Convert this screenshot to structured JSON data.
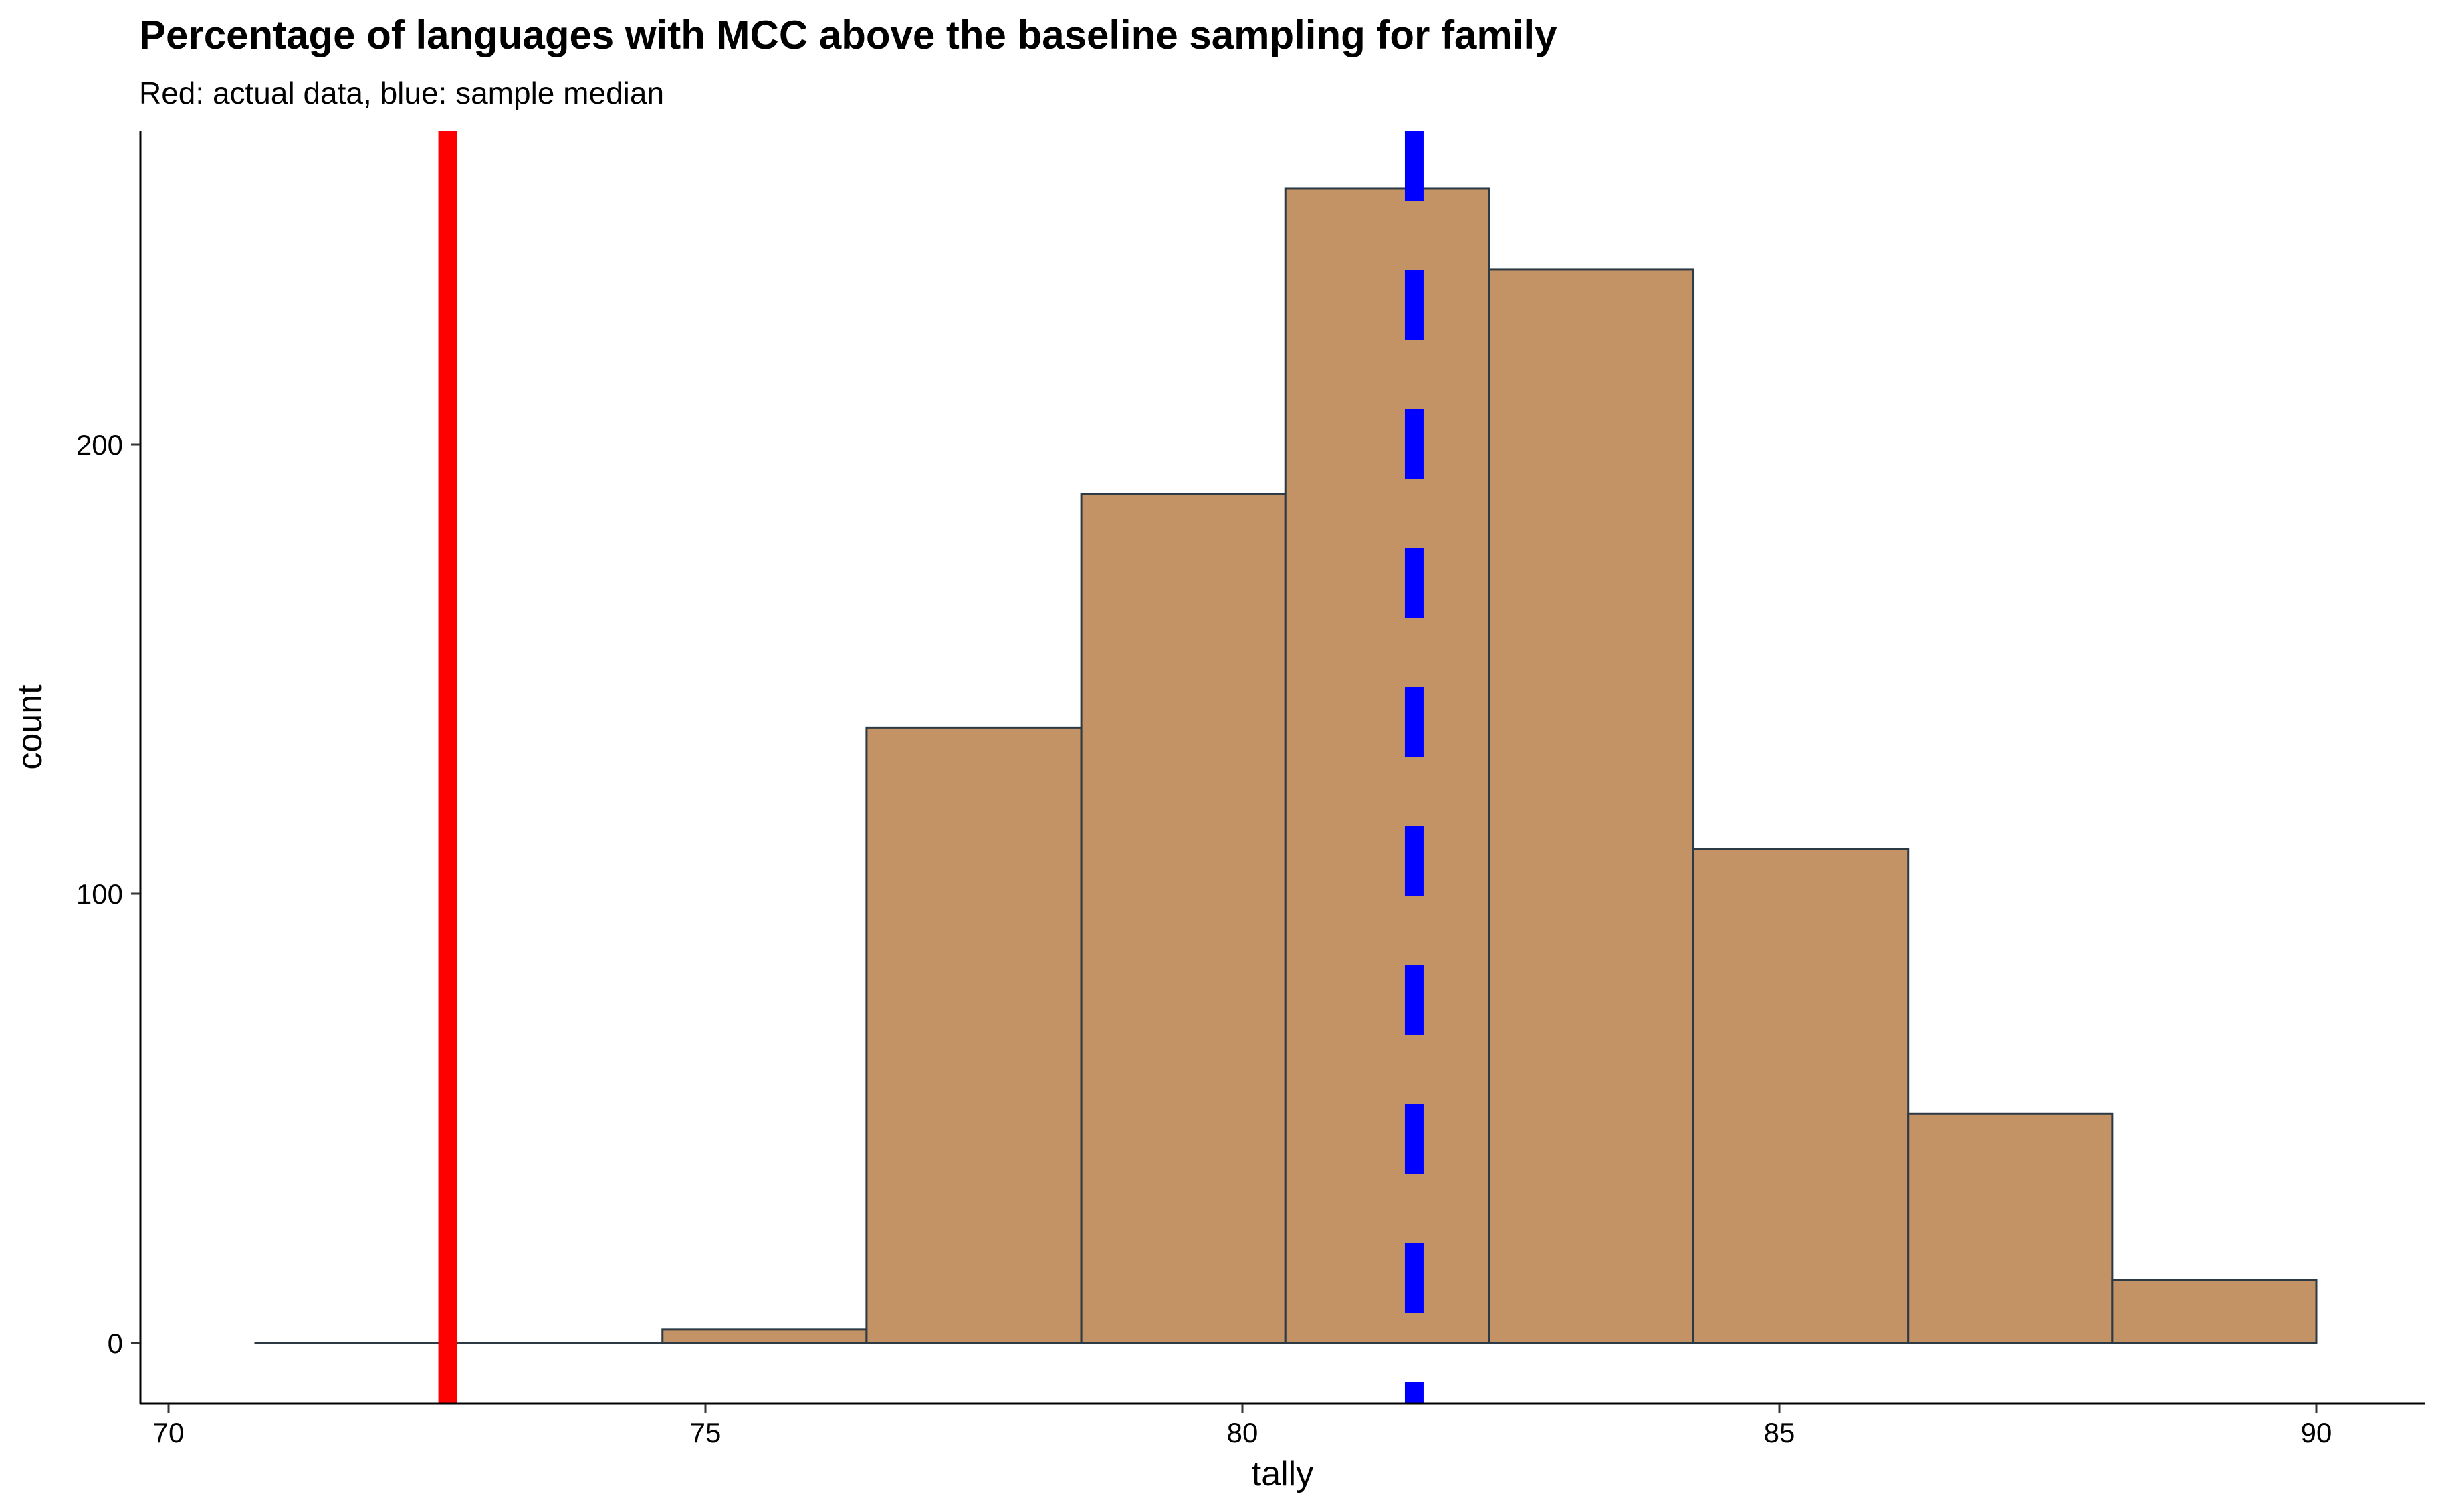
{
  "chart_data": {
    "type": "bar",
    "title": "Percentage of languages with MCC above the baseline sampling for family",
    "subtitle": "Red: actual data, blue: sample median",
    "xlabel": "tally",
    "ylabel": "count",
    "xlim": [
      70,
      90
    ],
    "ylim": [
      0,
      250
    ],
    "x_ticks": [
      "70",
      "75",
      "80",
      "85",
      "90"
    ],
    "y_ticks": [
      "0",
      "100",
      "200"
    ],
    "bins": [
      {
        "x0": 70.8,
        "x1": 72.7,
        "count": 0
      },
      {
        "x0": 72.7,
        "x1": 74.6,
        "count": 0
      },
      {
        "x0": 74.6,
        "x1": 76.5,
        "count": 3
      },
      {
        "x0": 76.5,
        "x1": 78.5,
        "count": 137
      },
      {
        "x0": 78.5,
        "x1": 80.4,
        "count": 189
      },
      {
        "x0": 80.4,
        "x1": 82.3,
        "count": 257
      },
      {
        "x0": 82.3,
        "x1": 84.2,
        "count": 239
      },
      {
        "x0": 84.2,
        "x1": 86.2,
        "count": 110
      },
      {
        "x0": 86.2,
        "x1": 88.1,
        "count": 51
      },
      {
        "x0": 88.1,
        "x1": 90.0,
        "count": 14
      }
    ],
    "reference_lines": [
      {
        "label": "actual data",
        "x": 72.6,
        "color": "#ff0000",
        "style": "solid"
      },
      {
        "label": "sample median",
        "x": 81.6,
        "color": "#0000ff",
        "style": "dashed"
      }
    ],
    "bar_fill": "#c39366",
    "bar_stroke": "#2b3a44",
    "grid": false
  }
}
